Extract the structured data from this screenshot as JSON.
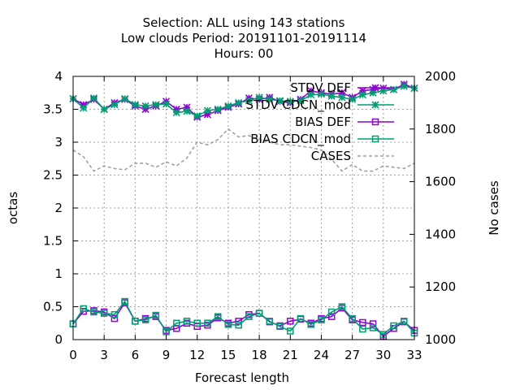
{
  "chart_data": {
    "type": "line",
    "title_lines": [
      "Selection: ALL using   143 stations",
      "Low clouds   Period: 20191101-20191114",
      "Hours:  00"
    ],
    "xlabel": "Forecast length",
    "ylabel": "octas",
    "y2label": "No cases",
    "xlim": [
      0,
      33
    ],
    "ylim": [
      0,
      4
    ],
    "y2lim": [
      1000,
      2000
    ],
    "x_ticks": [
      0,
      3,
      6,
      9,
      12,
      15,
      18,
      21,
      24,
      27,
      30,
      33
    ],
    "y_ticks": [
      0,
      0.5,
      1,
      1.5,
      2,
      2.5,
      3,
      3.5,
      4
    ],
    "y_tick_labels": [
      "0",
      "0.5",
      "1",
      "1.5",
      "2",
      "2.5",
      "3",
      "3.5",
      "4"
    ],
    "y2_ticks": [
      1000,
      1200,
      1400,
      1600,
      1800,
      2000
    ],
    "grid": true,
    "legend_position": "top-right",
    "x": [
      0,
      1,
      2,
      3,
      4,
      5,
      6,
      7,
      8,
      9,
      10,
      11,
      12,
      13,
      14,
      15,
      16,
      17,
      18,
      19,
      20,
      21,
      22,
      23,
      24,
      25,
      26,
      27,
      28,
      29,
      30,
      31,
      32,
      33
    ],
    "series": [
      {
        "name": "STDV DEF",
        "axis": "left",
        "color": "#9400d3",
        "marker": "star",
        "values": [
          3.66,
          3.57,
          3.65,
          3.5,
          3.6,
          3.65,
          3.55,
          3.5,
          3.55,
          3.62,
          3.5,
          3.53,
          3.38,
          3.42,
          3.48,
          3.53,
          3.58,
          3.67,
          3.65,
          3.68,
          3.62,
          3.6,
          3.65,
          3.78,
          3.75,
          3.73,
          3.75,
          3.68,
          3.78,
          3.8,
          3.82,
          3.8,
          3.88,
          3.82
        ]
      },
      {
        "name": "STDV CDCN_mod",
        "axis": "left",
        "color": "#009e73",
        "marker": "star",
        "values": [
          3.66,
          3.52,
          3.67,
          3.5,
          3.57,
          3.66,
          3.57,
          3.55,
          3.57,
          3.58,
          3.45,
          3.47,
          3.4,
          3.48,
          3.5,
          3.55,
          3.6,
          3.63,
          3.68,
          3.65,
          3.63,
          3.62,
          3.63,
          3.72,
          3.73,
          3.7,
          3.68,
          3.65,
          3.72,
          3.75,
          3.78,
          3.8,
          3.85,
          3.82
        ]
      },
      {
        "name": "BIAS DEF",
        "axis": "left",
        "color": "#9400d3",
        "marker": "square",
        "values": [
          0.24,
          0.43,
          0.44,
          0.42,
          0.32,
          0.56,
          0.28,
          0.32,
          0.35,
          0.14,
          0.17,
          0.25,
          0.2,
          0.22,
          0.33,
          0.25,
          0.28,
          0.38,
          0.4,
          0.27,
          0.21,
          0.28,
          0.31,
          0.25,
          0.32,
          0.35,
          0.48,
          0.3,
          0.26,
          0.24,
          0.05,
          0.17,
          0.27,
          0.14
        ]
      },
      {
        "name": "BIAS CDCN_mod",
        "axis": "left",
        "color": "#009e73",
        "marker": "square",
        "values": [
          0.24,
          0.47,
          0.42,
          0.4,
          0.38,
          0.58,
          0.28,
          0.3,
          0.37,
          0.12,
          0.25,
          0.28,
          0.25,
          0.25,
          0.35,
          0.23,
          0.22,
          0.35,
          0.4,
          0.28,
          0.2,
          0.13,
          0.32,
          0.23,
          0.3,
          0.42,
          0.5,
          0.32,
          0.16,
          0.18,
          0.08,
          0.21,
          0.28,
          0.1
        ]
      },
      {
        "name": "CASES",
        "axis": "right",
        "color": "#a0a0a0",
        "marker": "none",
        "dashed": true,
        "values": [
          1720,
          1695,
          1640,
          1660,
          1650,
          1645,
          1670,
          1670,
          1655,
          1675,
          1660,
          1690,
          1750,
          1740,
          1760,
          1800,
          1770,
          1775,
          1760,
          1750,
          1740,
          1740,
          1735,
          1730,
          1720,
          1685,
          1640,
          1665,
          1640,
          1640,
          1660,
          1655,
          1650,
          1670
        ]
      }
    ],
    "legend_labels": {
      "STDV DEF": "STDV DEF",
      "STDV CDCN_mod": "STDV CDCN_mod",
      "BIAS DEF": "BIAS DEF",
      "BIAS CDCN_mod": "BIAS CDCN_mod",
      "CASES": "CASES"
    }
  }
}
